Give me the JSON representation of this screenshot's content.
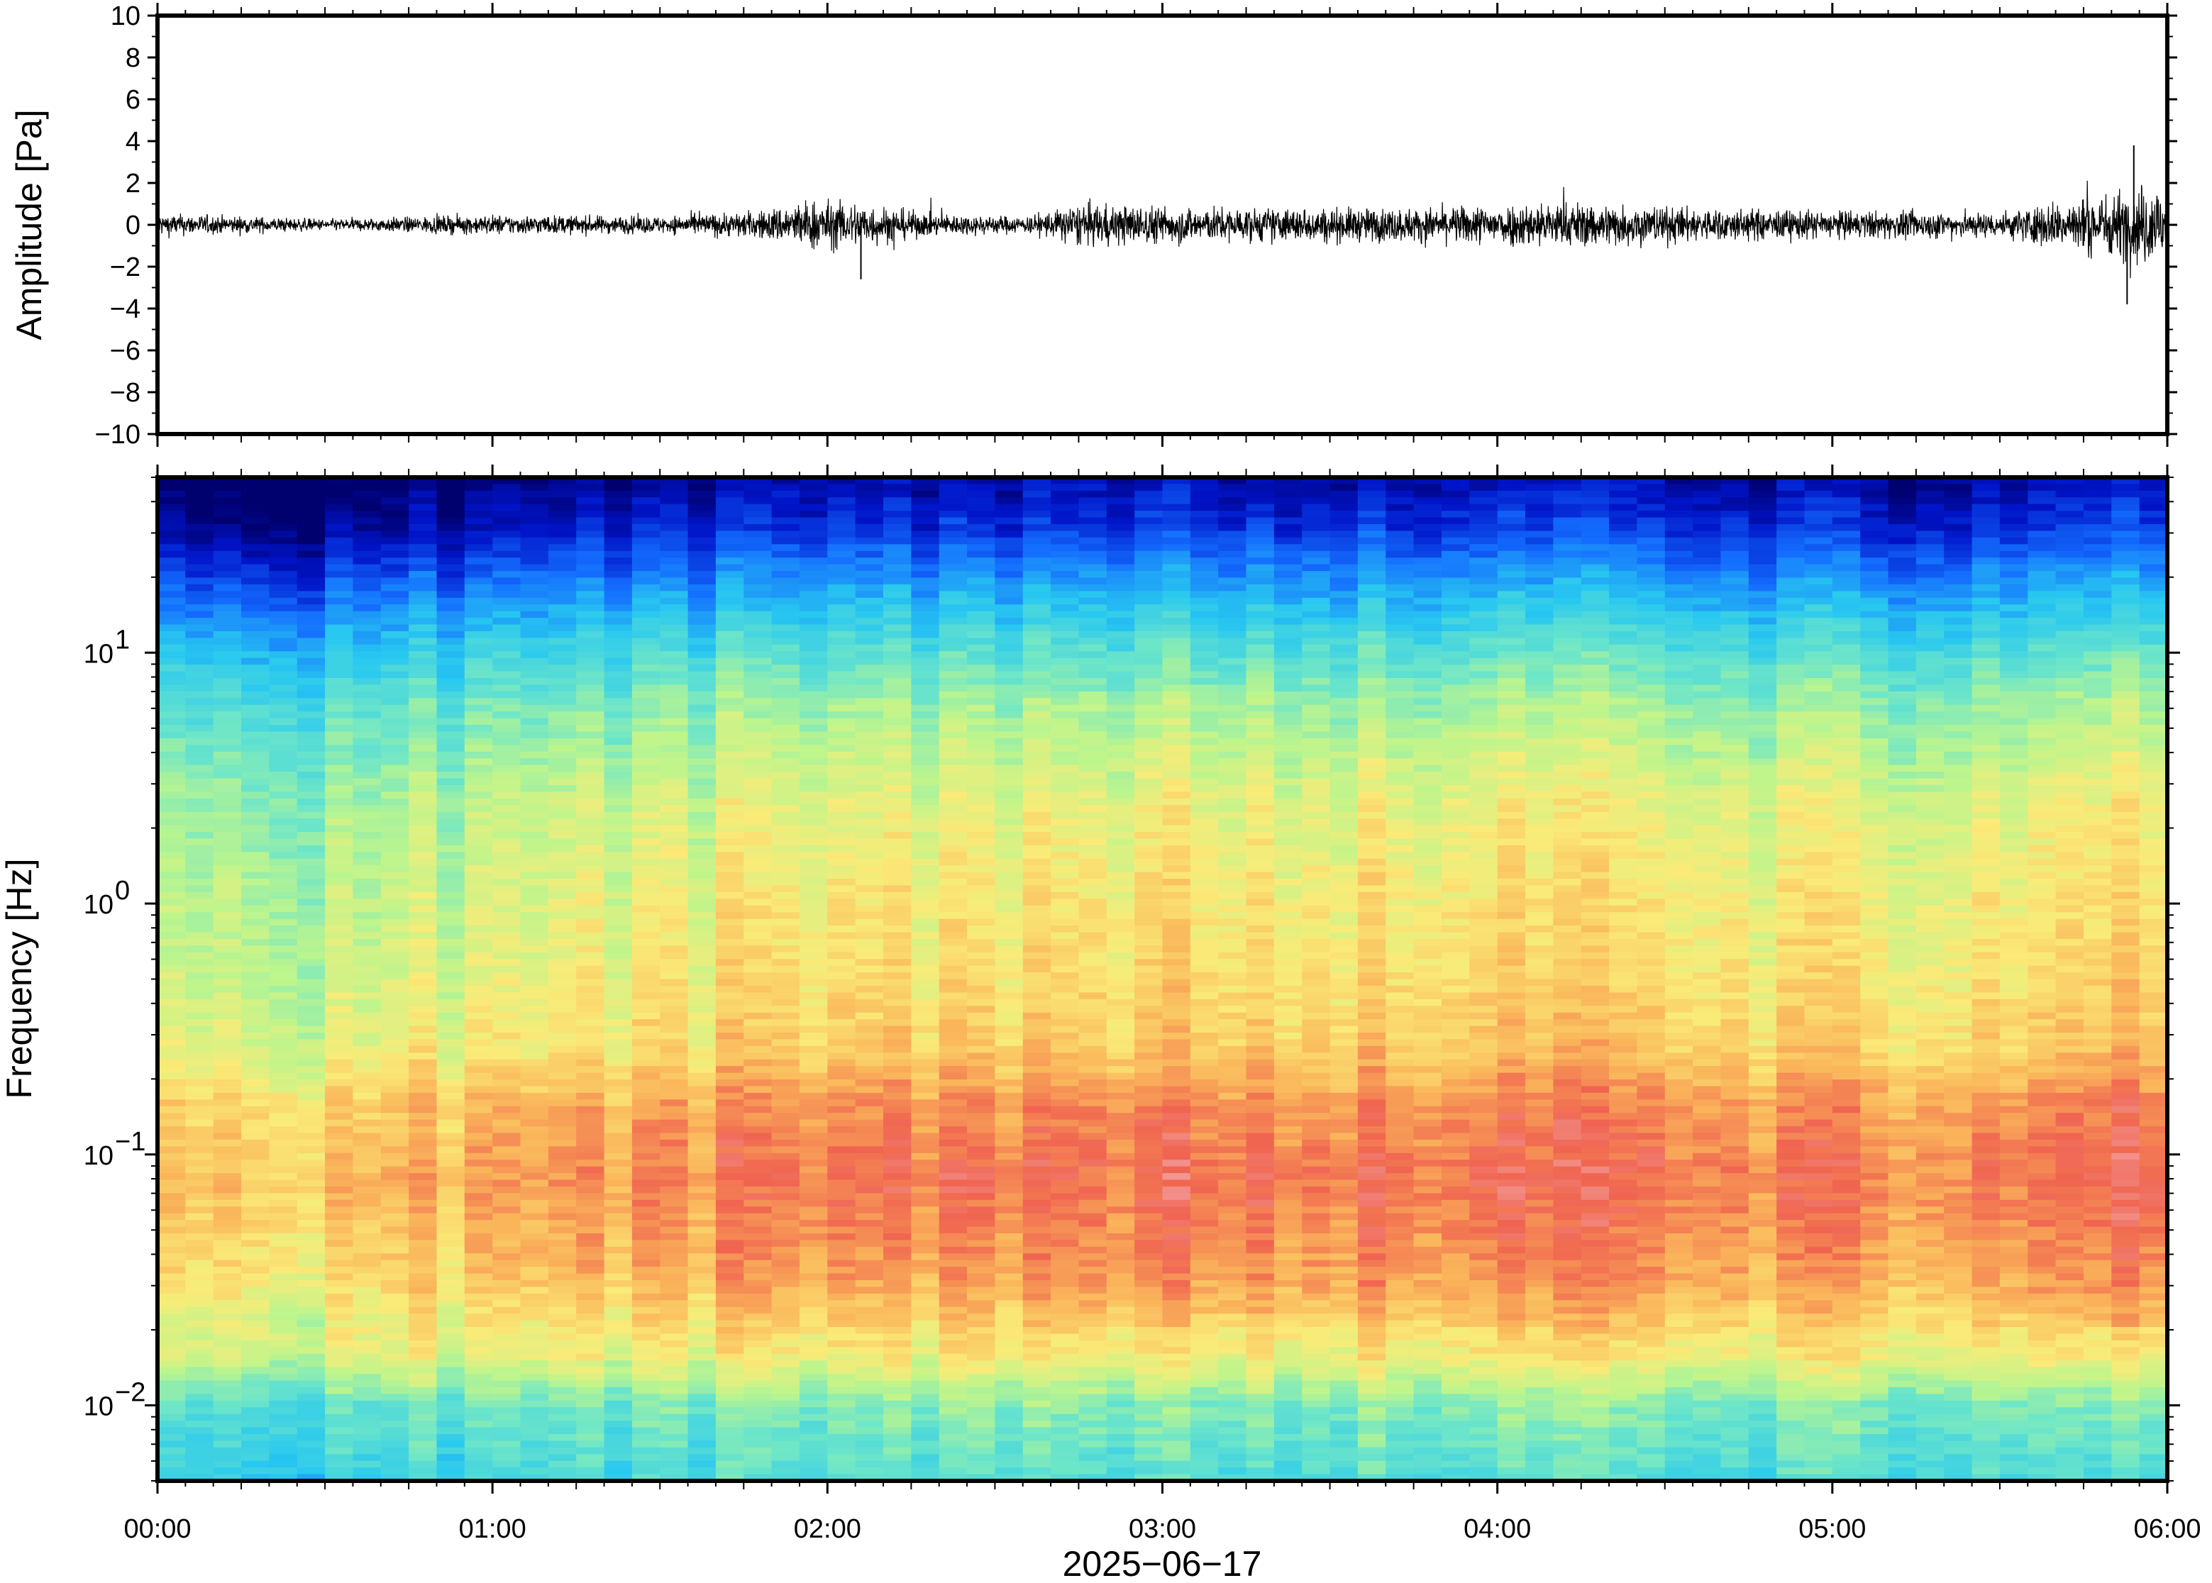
{
  "chart_data": [
    {
      "type": "line",
      "panel": "waveform",
      "ylabel": "Amplitude [Pa]",
      "ylim": [
        -10,
        10
      ],
      "yticks": [
        10,
        8,
        6,
        4,
        2,
        0,
        -2,
        -4,
        -6,
        -8,
        -10
      ],
      "ytick_labels": [
        "10",
        "8",
        "6",
        "4",
        "2",
        "0",
        "−2",
        "−4",
        "−6",
        "−8",
        "−10"
      ],
      "xlim": [
        "00:00",
        "06:00"
      ],
      "series": [
        {
          "color": "#000000",
          "envelope_x_hours": [
            0.0,
            0.5,
            1.0,
            1.5,
            1.8,
            1.95,
            2.1,
            2.3,
            2.6,
            2.75,
            2.9,
            3.2,
            3.5,
            3.8,
            4.1,
            4.3,
            4.6,
            5.0,
            5.5,
            5.7,
            5.85,
            5.95,
            6.0
          ],
          "envelope_amplitude_pa": [
            0.8,
            0.4,
            0.7,
            0.6,
            1.0,
            1.8,
            1.6,
            0.8,
            0.6,
            1.5,
            1.4,
            1.2,
            1.2,
            1.2,
            1.6,
            1.6,
            1.2,
            1.0,
            0.9,
            1.8,
            2.4,
            3.0,
            2.8
          ],
          "peaks": [
            {
              "x_hours": 2.1,
              "y_pa": -2.6
            },
            {
              "x_hours": 5.9,
              "y_pa": 3.8
            },
            {
              "x_hours": 5.88,
              "y_pa": -3.8
            }
          ]
        }
      ]
    },
    {
      "type": "heatmap",
      "panel": "spectrogram",
      "ylabel": "Frequency [Hz]",
      "xlabel": "2025−06−17",
      "y_scale": "log",
      "ylim": [
        0.005,
        50
      ],
      "yticks": [
        0.01,
        0.1,
        1,
        10
      ],
      "ytick_labels": [
        {
          "base": "10",
          "exp": "−2"
        },
        {
          "base": "10",
          "exp": "−1"
        },
        {
          "base": "10",
          "exp": "0"
        },
        {
          "base": "10",
          "exp": "1"
        }
      ],
      "x": [
        "00:00",
        "01:00",
        "02:00",
        "03:00",
        "04:00",
        "05:00",
        "06:00"
      ],
      "colormap": "jet",
      "description_levels": {
        "time_hours": [
          0.0,
          0.5,
          1.0,
          1.5,
          2.0,
          2.5,
          3.0,
          3.5,
          4.0,
          4.5,
          5.0,
          5.5,
          5.8,
          6.0
        ],
        "energy_scale": [
          0.35,
          0.2,
          0.4,
          0.55,
          0.75,
          0.6,
          0.8,
          0.7,
          0.75,
          0.75,
          0.6,
          0.6,
          1.0,
          0.9
        ]
      }
    }
  ]
}
